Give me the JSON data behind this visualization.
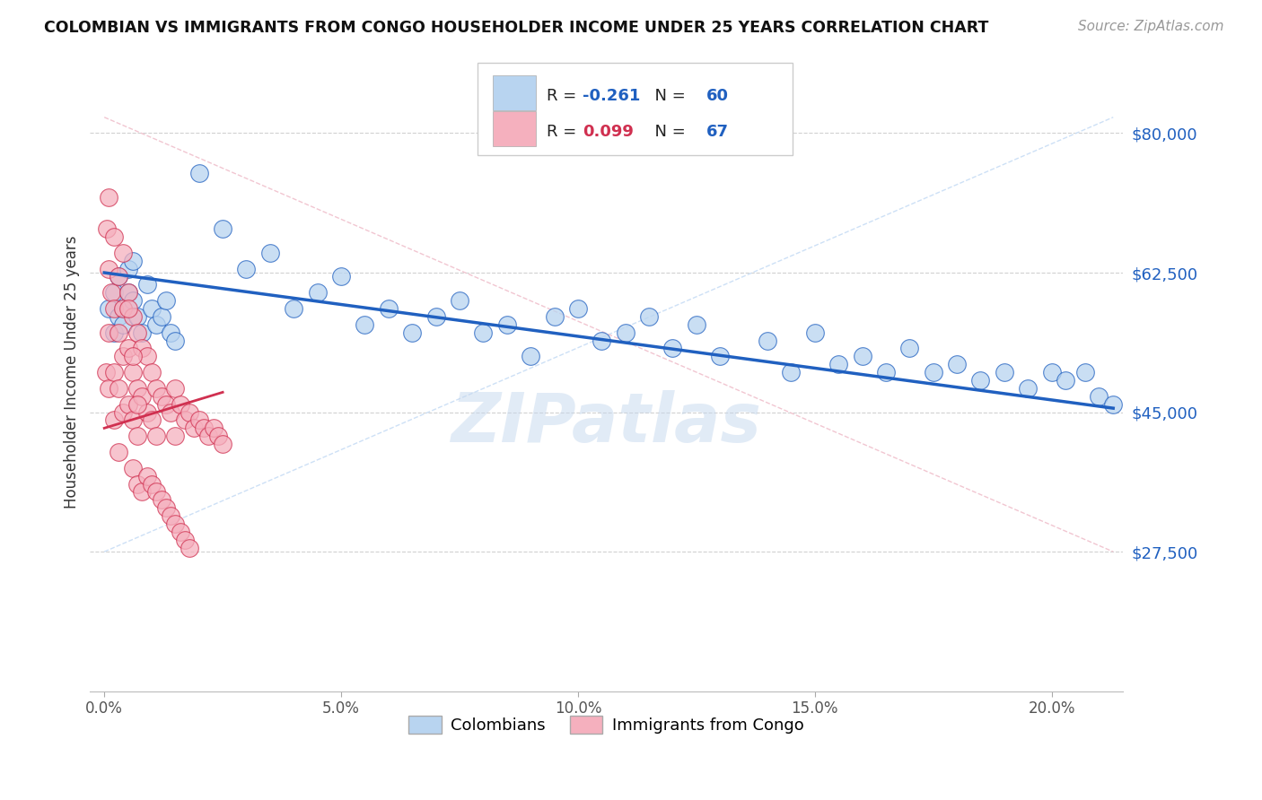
{
  "title": "COLOMBIAN VS IMMIGRANTS FROM CONGO HOUSEHOLDER INCOME UNDER 25 YEARS CORRELATION CHART",
  "source": "Source: ZipAtlas.com",
  "ylabel": "Householder Income Under 25 years",
  "xlabel_ticks": [
    "0.0%",
    "5.0%",
    "10.0%",
    "15.0%",
    "20.0%"
  ],
  "xlabel_vals": [
    0.0,
    0.05,
    0.1,
    0.15,
    0.2
  ],
  "ylabel_ticks": [
    "$27,500",
    "$45,000",
    "$62,500",
    "$80,000"
  ],
  "ylabel_vals": [
    27500,
    45000,
    62500,
    80000
  ],
  "ylim": [
    10000,
    90000
  ],
  "xlim": [
    -0.003,
    0.215
  ],
  "legend1_R": "-0.261",
  "legend1_N": "60",
  "legend2_R": "0.099",
  "legend2_N": "67",
  "blue_color": "#b8d4f0",
  "pink_color": "#f5b0be",
  "blue_line_color": "#2060c0",
  "pink_line_color": "#d03050",
  "pink_dash_color": "#f0c0cc",
  "blue_dash_color": "#c8ddf5",
  "watermark": "ZIPatlas",
  "colombians_x": [
    0.001,
    0.002,
    0.002,
    0.003,
    0.003,
    0.004,
    0.004,
    0.005,
    0.005,
    0.006,
    0.006,
    0.007,
    0.008,
    0.009,
    0.01,
    0.011,
    0.012,
    0.013,
    0.014,
    0.015,
    0.02,
    0.025,
    0.03,
    0.035,
    0.04,
    0.045,
    0.05,
    0.055,
    0.06,
    0.065,
    0.07,
    0.075,
    0.08,
    0.085,
    0.09,
    0.095,
    0.1,
    0.105,
    0.11,
    0.115,
    0.12,
    0.125,
    0.13,
    0.14,
    0.145,
    0.15,
    0.155,
    0.16,
    0.165,
    0.17,
    0.175,
    0.18,
    0.185,
    0.19,
    0.195,
    0.2,
    0.203,
    0.207,
    0.21,
    0.213
  ],
  "colombians_y": [
    58000,
    60000,
    55000,
    57000,
    62000,
    58000,
    56000,
    63000,
    60000,
    64000,
    59000,
    57000,
    55000,
    61000,
    58000,
    56000,
    57000,
    59000,
    55000,
    54000,
    75000,
    68000,
    63000,
    65000,
    58000,
    60000,
    62000,
    56000,
    58000,
    55000,
    57000,
    59000,
    55000,
    56000,
    52000,
    57000,
    58000,
    54000,
    55000,
    57000,
    53000,
    56000,
    52000,
    54000,
    50000,
    55000,
    51000,
    52000,
    50000,
    53000,
    50000,
    51000,
    49000,
    50000,
    48000,
    50000,
    49000,
    50000,
    47000,
    46000
  ],
  "congo_x": [
    0.0003,
    0.0005,
    0.001,
    0.001,
    0.001,
    0.001,
    0.0015,
    0.002,
    0.002,
    0.002,
    0.002,
    0.003,
    0.003,
    0.003,
    0.003,
    0.004,
    0.004,
    0.004,
    0.005,
    0.005,
    0.005,
    0.006,
    0.006,
    0.006,
    0.007,
    0.007,
    0.007,
    0.008,
    0.008,
    0.009,
    0.009,
    0.01,
    0.01,
    0.011,
    0.011,
    0.012,
    0.013,
    0.014,
    0.015,
    0.015,
    0.016,
    0.017,
    0.018,
    0.019,
    0.02,
    0.021,
    0.022,
    0.023,
    0.024,
    0.025,
    0.006,
    0.007,
    0.008,
    0.009,
    0.01,
    0.011,
    0.012,
    0.013,
    0.014,
    0.015,
    0.016,
    0.017,
    0.018,
    0.004,
    0.005,
    0.006,
    0.007
  ],
  "congo_y": [
    50000,
    68000,
    72000,
    63000,
    55000,
    48000,
    60000,
    67000,
    58000,
    50000,
    44000,
    62000,
    55000,
    48000,
    40000,
    58000,
    52000,
    45000,
    60000,
    53000,
    46000,
    57000,
    50000,
    44000,
    55000,
    48000,
    42000,
    53000,
    47000,
    52000,
    45000,
    50000,
    44000,
    48000,
    42000,
    47000,
    46000,
    45000,
    48000,
    42000,
    46000,
    44000,
    45000,
    43000,
    44000,
    43000,
    42000,
    43000,
    42000,
    41000,
    38000,
    36000,
    35000,
    37000,
    36000,
    35000,
    34000,
    33000,
    32000,
    31000,
    30000,
    29000,
    28000,
    65000,
    58000,
    52000,
    46000
  ]
}
